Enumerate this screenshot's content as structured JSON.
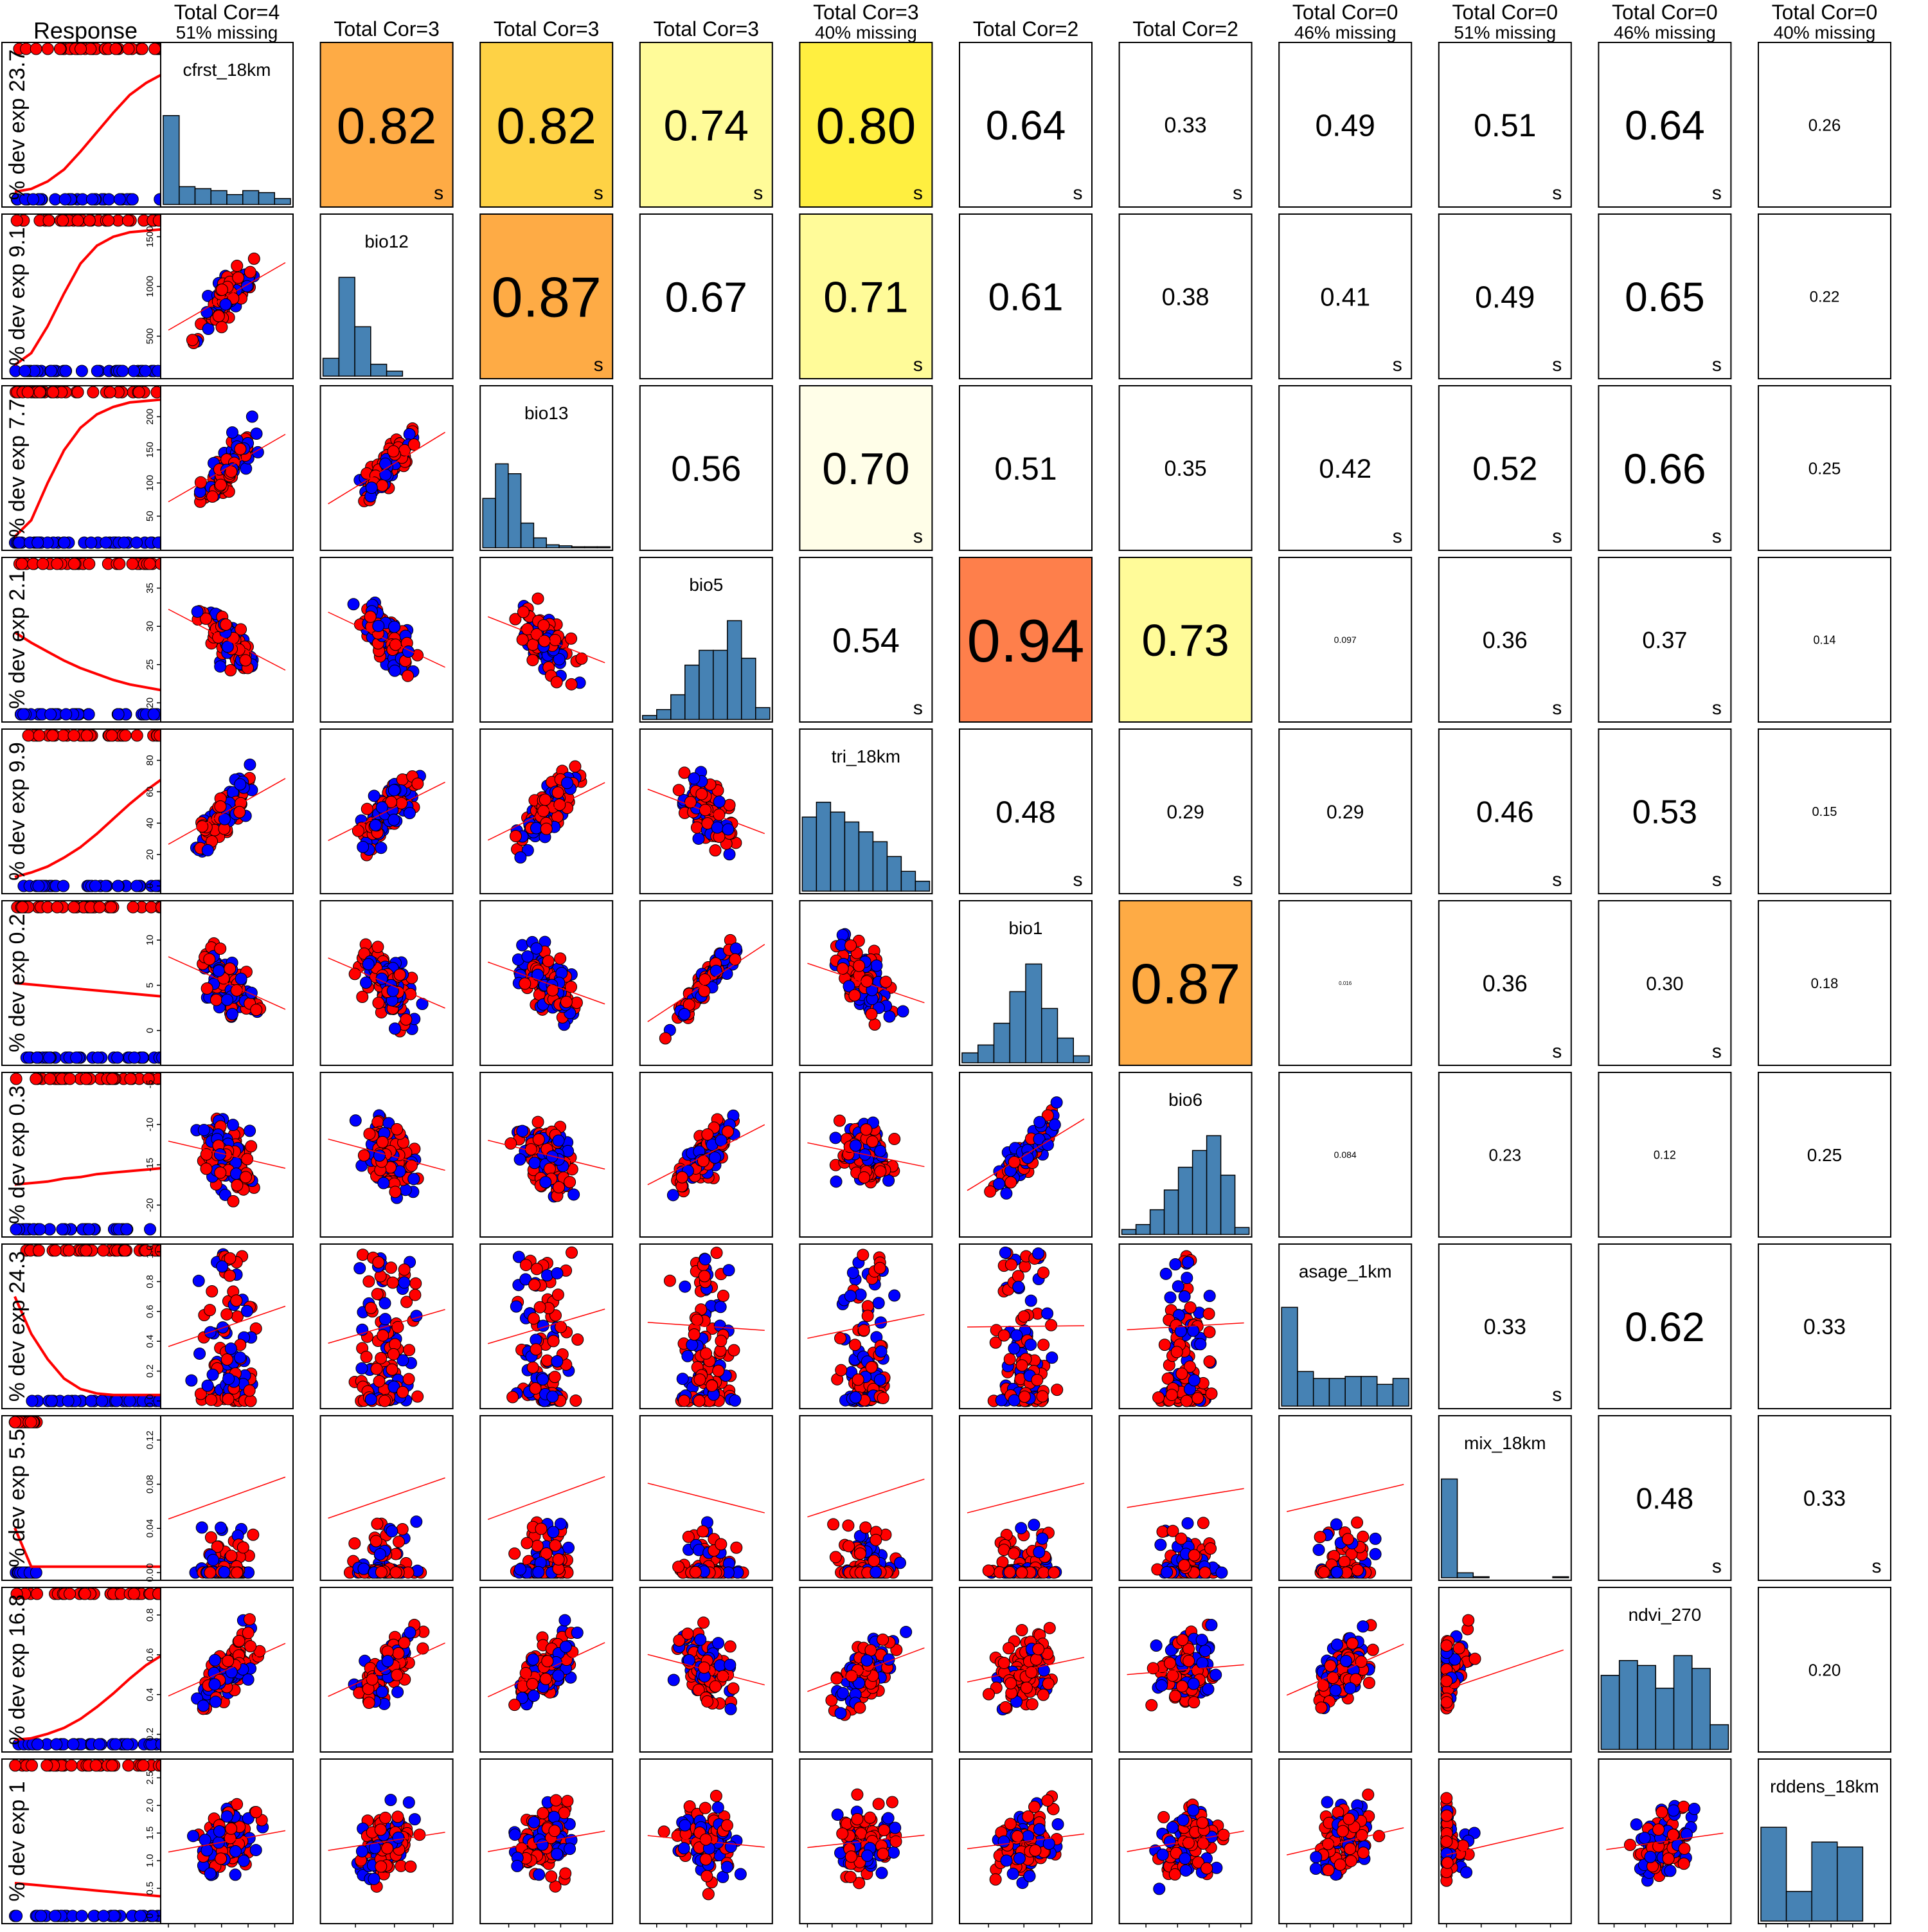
{
  "chart_data": {
    "type": "scatter",
    "title": "",
    "response_header": "Response",
    "colors": {
      "presence": "#ff0000",
      "absence": "#0000ff",
      "histogram": "#4682b4",
      "cor_high": "#fe7f4b",
      "cor_mid_high": "#feab45",
      "cor_mid": "#fed245",
      "cor_mid_low": "#ffef40",
      "cor_low": "#fffb99",
      "cor_very_low": "#fffee8"
    },
    "variables": [
      {
        "name": "cfrst_18km",
        "header": "Total Cor=4",
        "missing": "51% missing",
        "deviance": "% dev exp 23.7",
        "ticks": [
          "0.0",
          "0.2",
          "0.4",
          "0.6",
          "0.8"
        ],
        "range": [
          0,
          0.88
        ],
        "histogram": [
          0.9,
          0.18,
          0.16,
          0.14,
          0.1,
          0.14,
          0.12,
          0.06
        ]
      },
      {
        "name": "bio12",
        "header": "Total Cor=3",
        "missing": "",
        "deviance": "% dev exp 9.1",
        "ticks": [
          "500",
          "1000",
          "1500"
        ],
        "range": [
          150,
          1650
        ],
        "histogram": [
          0.18,
          1.0,
          0.5,
          0.12,
          0.05,
          0.0,
          0.0,
          0.0
        ]
      },
      {
        "name": "bio13",
        "header": "Total Cor=3",
        "missing": "",
        "deviance": "% dev exp 7.7",
        "ticks": [
          "50",
          "100",
          "150",
          "200"
        ],
        "range": [
          10,
          235
        ],
        "histogram": [
          0.5,
          0.85,
          0.75,
          0.25,
          0.1,
          0.03,
          0.02,
          0.01,
          0.01,
          0.01
        ]
      },
      {
        "name": "bio5",
        "header": "Total Cor=3",
        "missing": "",
        "deviance": "% dev exp 2.1",
        "ticks": [
          "20",
          "25",
          "30",
          "35"
        ],
        "range": [
          18.5,
          38
        ],
        "histogram": [
          0.04,
          0.1,
          0.25,
          0.55,
          0.7,
          0.7,
          1.0,
          0.62,
          0.12
        ]
      },
      {
        "name": "tri_18km",
        "header": "Total Cor=3",
        "missing": "40% missing",
        "deviance": "% dev exp 9.9",
        "ticks": [
          "0",
          "20",
          "40",
          "60",
          "80"
        ],
        "range": [
          0,
          95
        ],
        "histogram": [
          0.75,
          0.9,
          0.8,
          0.7,
          0.6,
          0.5,
          0.35,
          0.2,
          0.1
        ]
      },
      {
        "name": "bio1",
        "header": "Total Cor=2",
        "missing": "",
        "deviance": "% dev exp 0.2",
        "ticks": [
          "0",
          "5",
          "10"
        ],
        "range": [
          -3,
          13.5
        ],
        "histogram": [
          0.1,
          0.18,
          0.4,
          0.72,
          1.0,
          0.55,
          0.25,
          0.07
        ]
      },
      {
        "name": "bio6",
        "header": "Total Cor=2",
        "missing": "",
        "deviance": "% dev exp 0.3",
        "ticks": [
          "-20",
          "-15",
          "-10",
          "-5"
        ],
        "range": [
          -23,
          -4.5
        ],
        "histogram": [
          0.05,
          0.1,
          0.25,
          0.45,
          0.68,
          0.85,
          1.0,
          0.6,
          0.07
        ]
      },
      {
        "name": "asage_1km",
        "header": "Total Cor=0",
        "missing": "46% missing",
        "deviance": "% dev exp 24.3",
        "ticks": [
          "0.0",
          "0.2",
          "0.4",
          "0.6",
          "0.8",
          "1.0"
        ],
        "range": [
          0,
          1.0
        ],
        "histogram": [
          1.0,
          0.35,
          0.28,
          0.28,
          0.3,
          0.3,
          0.22,
          0.28
        ]
      },
      {
        "name": "mix_18km",
        "header": "Total Cor=0",
        "missing": "51% missing",
        "deviance": "% dev exp 5.5",
        "ticks": [
          "0.00",
          "0.04",
          "0.08",
          "0.12"
        ],
        "range": [
          0,
          0.135
        ],
        "histogram": [
          1.0,
          0.05,
          0.01,
          0.0,
          0.0,
          0.0,
          0.0,
          0.01
        ]
      },
      {
        "name": "ndvi_270",
        "header": "Total Cor=0",
        "missing": "46% missing",
        "deviance": "% dev exp 16.8",
        "ticks": [
          "0.2",
          "0.4",
          "0.6",
          "0.8"
        ],
        "range": [
          0.15,
          0.9
        ],
        "histogram": [
          0.75,
          0.9,
          0.85,
          0.62,
          0.95,
          0.82,
          0.25
        ]
      },
      {
        "name": "rddens_18km",
        "header": "Total Cor=0",
        "missing": "40% missing",
        "deviance": "% dev exp 1",
        "ticks": [
          "0",
          "0.5",
          "1.0",
          "1.5",
          "2.0",
          "2.5"
        ],
        "range": [
          0,
          2.7
        ],
        "histogram": [
          0.95,
          0.3,
          0.8,
          0.75,
          0.0
        ]
      }
    ],
    "correlations": [
      {
        "row": 0,
        "col": 1,
        "text": "0.82",
        "s": true,
        "fill": "cor_mid_high",
        "size": 80
      },
      {
        "row": 0,
        "col": 2,
        "text": "0.82",
        "s": true,
        "fill": "cor_mid",
        "size": 80
      },
      {
        "row": 0,
        "col": 3,
        "text": "0.74",
        "s": true,
        "fill": "cor_low",
        "size": 68
      },
      {
        "row": 0,
        "col": 4,
        "text": "0.80",
        "s": true,
        "fill": "cor_mid_low",
        "size": 80
      },
      {
        "row": 0,
        "col": 5,
        "text": "0.64",
        "s": true,
        "fill": "",
        "size": 64
      },
      {
        "row": 0,
        "col": 6,
        "text": "0.33",
        "s": true,
        "fill": "",
        "size": 34
      },
      {
        "row": 0,
        "col": 7,
        "text": "0.49",
        "s": false,
        "fill": "",
        "size": 48
      },
      {
        "row": 0,
        "col": 8,
        "text": "0.51",
        "s": true,
        "fill": "",
        "size": 50
      },
      {
        "row": 0,
        "col": 9,
        "text": "0.64",
        "s": true,
        "fill": "",
        "size": 64
      },
      {
        "row": 0,
        "col": 10,
        "text": "0.26",
        "s": false,
        "fill": "",
        "size": 26
      },
      {
        "row": 1,
        "col": 2,
        "text": "0.87",
        "s": true,
        "fill": "cor_mid_high",
        "size": 88
      },
      {
        "row": 1,
        "col": 3,
        "text": "0.67",
        "s": false,
        "fill": "",
        "size": 66
      },
      {
        "row": 1,
        "col": 4,
        "text": "0.71",
        "s": true,
        "fill": "cor_low",
        "size": 68
      },
      {
        "row": 1,
        "col": 5,
        "text": "0.61",
        "s": false,
        "fill": "",
        "size": 60
      },
      {
        "row": 1,
        "col": 6,
        "text": "0.38",
        "s": false,
        "fill": "",
        "size": 38
      },
      {
        "row": 1,
        "col": 7,
        "text": "0.41",
        "s": true,
        "fill": "",
        "size": 40
      },
      {
        "row": 1,
        "col": 8,
        "text": "0.49",
        "s": true,
        "fill": "",
        "size": 48
      },
      {
        "row": 1,
        "col": 9,
        "text": "0.65",
        "s": true,
        "fill": "",
        "size": 64
      },
      {
        "row": 1,
        "col": 10,
        "text": "0.22",
        "s": false,
        "fill": "",
        "size": 24
      },
      {
        "row": 2,
        "col": 3,
        "text": "0.56",
        "s": false,
        "fill": "",
        "size": 56
      },
      {
        "row": 2,
        "col": 4,
        "text": "0.70",
        "s": true,
        "fill": "cor_very_low",
        "size": 70
      },
      {
        "row": 2,
        "col": 5,
        "text": "0.51",
        "s": false,
        "fill": "",
        "size": 50
      },
      {
        "row": 2,
        "col": 6,
        "text": "0.35",
        "s": false,
        "fill": "",
        "size": 34
      },
      {
        "row": 2,
        "col": 7,
        "text": "0.42",
        "s": true,
        "fill": "",
        "size": 42
      },
      {
        "row": 2,
        "col": 8,
        "text": "0.52",
        "s": true,
        "fill": "",
        "size": 52
      },
      {
        "row": 2,
        "col": 9,
        "text": "0.66",
        "s": true,
        "fill": "",
        "size": 66
      },
      {
        "row": 2,
        "col": 10,
        "text": "0.25",
        "s": false,
        "fill": "",
        "size": 26
      },
      {
        "row": 3,
        "col": 4,
        "text": "0.54",
        "s": true,
        "fill": "",
        "size": 54
      },
      {
        "row": 3,
        "col": 5,
        "text": "0.94",
        "s": false,
        "fill": "cor_high",
        "size": 94
      },
      {
        "row": 3,
        "col": 6,
        "text": "0.73",
        "s": false,
        "fill": "cor_low",
        "size": 70
      },
      {
        "row": 3,
        "col": 7,
        "text": "0.097",
        "s": false,
        "fill": "",
        "size": 14
      },
      {
        "row": 3,
        "col": 8,
        "text": "0.36",
        "s": true,
        "fill": "",
        "size": 36
      },
      {
        "row": 3,
        "col": 9,
        "text": "0.37",
        "s": true,
        "fill": "",
        "size": 36
      },
      {
        "row": 3,
        "col": 10,
        "text": "0.14",
        "s": false,
        "fill": "",
        "size": 18
      },
      {
        "row": 4,
        "col": 5,
        "text": "0.48",
        "s": true,
        "fill": "",
        "size": 48
      },
      {
        "row": 4,
        "col": 6,
        "text": "0.29",
        "s": true,
        "fill": "",
        "size": 30
      },
      {
        "row": 4,
        "col": 7,
        "text": "0.29",
        "s": false,
        "fill": "",
        "size": 30
      },
      {
        "row": 4,
        "col": 8,
        "text": "0.46",
        "s": true,
        "fill": "",
        "size": 46
      },
      {
        "row": 4,
        "col": 9,
        "text": "0.53",
        "s": true,
        "fill": "",
        "size": 52
      },
      {
        "row": 4,
        "col": 10,
        "text": "0.15",
        "s": false,
        "fill": "",
        "size": 20
      },
      {
        "row": 5,
        "col": 6,
        "text": "0.87",
        "s": false,
        "fill": "cor_mid_high",
        "size": 88
      },
      {
        "row": 5,
        "col": 7,
        "text": "0.016",
        "s": false,
        "fill": "",
        "size": 8
      },
      {
        "row": 5,
        "col": 8,
        "text": "0.36",
        "s": true,
        "fill": "",
        "size": 36
      },
      {
        "row": 5,
        "col": 9,
        "text": "0.30",
        "s": true,
        "fill": "",
        "size": 30
      },
      {
        "row": 5,
        "col": 10,
        "text": "0.18",
        "s": false,
        "fill": "",
        "size": 22
      },
      {
        "row": 6,
        "col": 7,
        "text": "0.084",
        "s": false,
        "fill": "",
        "size": 14
      },
      {
        "row": 6,
        "col": 8,
        "text": "0.23",
        "s": false,
        "fill": "",
        "size": 26
      },
      {
        "row": 6,
        "col": 9,
        "text": "0.12",
        "s": false,
        "fill": "",
        "size": 18
      },
      {
        "row": 6,
        "col": 10,
        "text": "0.25",
        "s": false,
        "fill": "",
        "size": 28
      },
      {
        "row": 7,
        "col": 8,
        "text": "0.33",
        "s": true,
        "fill": "",
        "size": 34
      },
      {
        "row": 7,
        "col": 9,
        "text": "0.62",
        "s": false,
        "fill": "",
        "size": 64
      },
      {
        "row": 7,
        "col": 10,
        "text": "0.33",
        "s": false,
        "fill": "",
        "size": 34
      },
      {
        "row": 8,
        "col": 9,
        "text": "0.48",
        "s": true,
        "fill": "",
        "size": 46
      },
      {
        "row": 8,
        "col": 10,
        "text": "0.33",
        "s": true,
        "fill": "",
        "size": 34
      },
      {
        "row": 9,
        "col": 10,
        "text": "0.20",
        "s": false,
        "fill": "",
        "size": 26
      }
    ],
    "s_label": "s",
    "response_curves": [
      [
        0.05,
        0.07,
        0.12,
        0.2,
        0.32,
        0.45,
        0.58,
        0.7,
        0.78,
        0.84
      ],
      [
        0.04,
        0.12,
        0.3,
        0.52,
        0.72,
        0.84,
        0.9,
        0.93,
        0.94,
        0.95
      ],
      [
        0.04,
        0.15,
        0.4,
        0.62,
        0.77,
        0.86,
        0.91,
        0.94,
        0.95,
        0.96
      ],
      [
        0.55,
        0.48,
        0.42,
        0.36,
        0.31,
        0.27,
        0.23,
        0.2,
        0.18,
        0.16
      ],
      [
        0.06,
        0.09,
        0.13,
        0.19,
        0.26,
        0.35,
        0.45,
        0.55,
        0.64,
        0.72
      ],
      [
        0.5,
        0.49,
        0.48,
        0.47,
        0.46,
        0.45,
        0.44,
        0.43,
        0.42,
        0.41
      ],
      [
        0.3,
        0.31,
        0.32,
        0.34,
        0.35,
        0.37,
        0.38,
        0.39,
        0.4,
        0.41
      ],
      [
        0.7,
        0.45,
        0.28,
        0.15,
        0.08,
        0.05,
        0.04,
        0.04,
        0.04,
        0.04
      ],
      [
        0.3,
        0.04,
        0.04,
        0.04,
        0.04,
        0.04,
        0.04,
        0.04,
        0.04,
        0.04
      ],
      [
        0.03,
        0.04,
        0.07,
        0.11,
        0.17,
        0.25,
        0.34,
        0.44,
        0.53,
        0.6
      ],
      [
        0.22,
        0.21,
        0.2,
        0.19,
        0.18,
        0.17,
        0.16,
        0.15,
        0.14,
        0.13
      ]
    ]
  }
}
